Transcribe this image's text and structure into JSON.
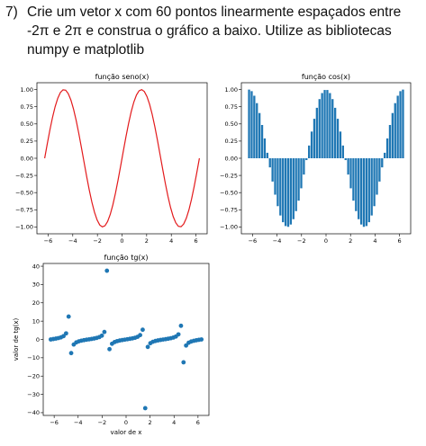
{
  "task": {
    "number": "7)",
    "text": "Crie um vetor x  com 60 pontos linearmente espaçados entre\n-2π e 2π e construa o gráfico a baixo. Utilize as bibliotecas\nnumpy e matplotlib"
  },
  "chart_data": [
    {
      "type": "line",
      "title": "função seno(x)",
      "xlabel": "",
      "ylabel": "",
      "xlim": [
        -6.912,
        6.912
      ],
      "ylim": [
        -1.1,
        1.1
      ],
      "xticks": [
        -6,
        -4,
        -2,
        0,
        2,
        4,
        6
      ],
      "yticks": [
        -1.0,
        -0.75,
        -0.5,
        -0.25,
        0.0,
        0.25,
        0.5,
        0.75,
        1.0
      ],
      "ytick_labels": [
        "−1.00",
        "−0.75",
        "−0.50",
        "−0.25",
        "0.00",
        "0.25",
        "0.50",
        "0.75",
        "1.00"
      ],
      "color": "#e31a1c",
      "x_range": [
        -6.2832,
        6.2832
      ],
      "n_points": 60,
      "function": "sin(x)"
    },
    {
      "type": "bar",
      "title": "função cos(x)",
      "xlabel": "",
      "ylabel": "",
      "xlim": [
        -6.912,
        6.912
      ],
      "ylim": [
        -1.1,
        1.1
      ],
      "xticks": [
        -6,
        -4,
        -2,
        0,
        2,
        4,
        6
      ],
      "yticks": [
        -1.0,
        -0.75,
        -0.5,
        -0.25,
        0.0,
        0.25,
        0.5,
        0.75,
        1.0
      ],
      "ytick_labels": [
        "−1.00",
        "−0.75",
        "−0.50",
        "−0.25",
        "0.00",
        "0.25",
        "0.50",
        "0.75",
        "1.00"
      ],
      "color": "#1f77b4",
      "x_range": [
        -6.2832,
        6.2832
      ],
      "n_points": 60,
      "function": "cos(x)"
    },
    {
      "type": "scatter",
      "title": "função tg(x)",
      "xlabel": "valor de x",
      "ylabel": "valor de tg(x)",
      "xlim": [
        -6.912,
        6.912
      ],
      "ylim": [
        -41.5,
        41.5
      ],
      "xticks": [
        -6,
        -4,
        -2,
        0,
        2,
        4,
        6
      ],
      "yticks": [
        -40,
        -30,
        -20,
        -10,
        0,
        10,
        20,
        30,
        40
      ],
      "ytick_labels": [
        "−40",
        "−30",
        "−20",
        "−10",
        "0",
        "10",
        "20",
        "30",
        "40"
      ],
      "color": "#1f77b4",
      "x_range": [
        -6.2832,
        6.2832
      ],
      "n_points": 60,
      "function": "tan(x)"
    }
  ]
}
